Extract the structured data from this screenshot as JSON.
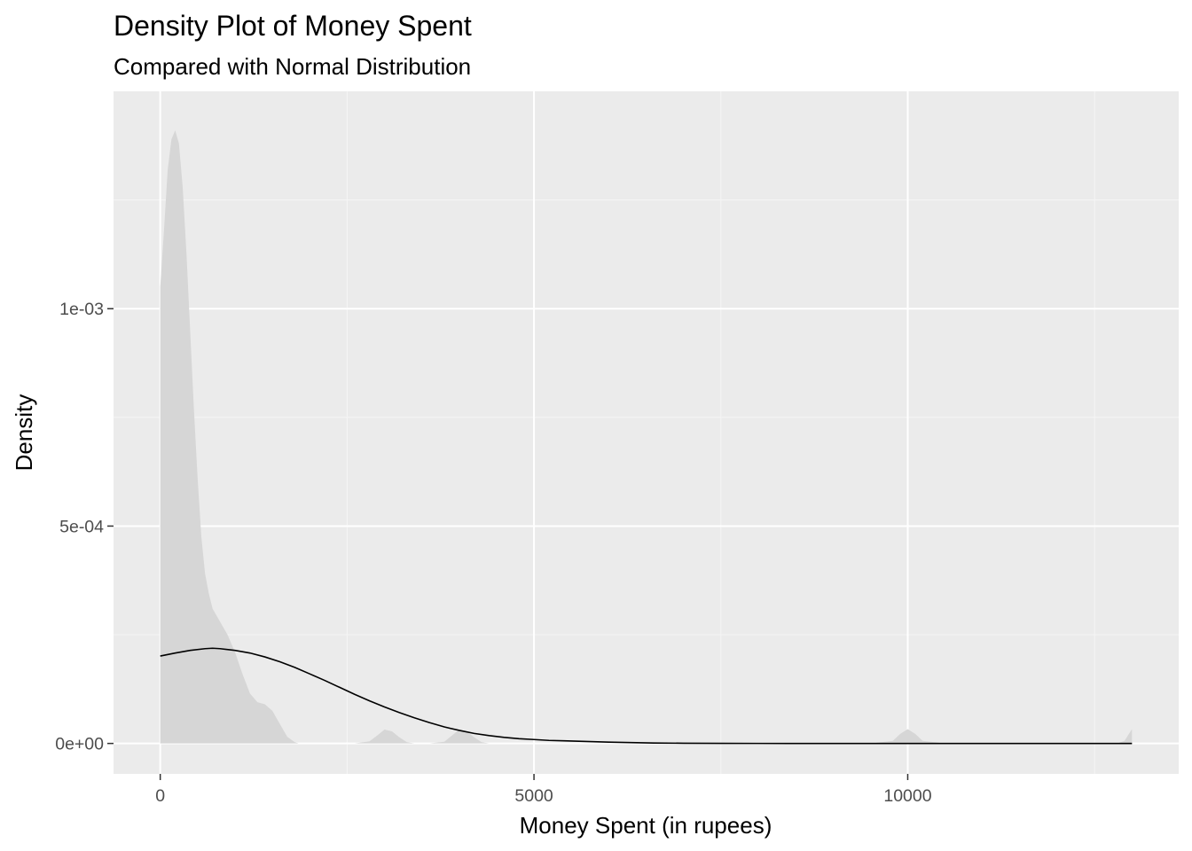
{
  "colors": {
    "panel_background": "#ebebeb",
    "grid_major": "#ffffff",
    "grid_minor": "#f5f5f5",
    "density_fill": "#d6d6d6",
    "normal_line": "#000000",
    "tick_text": "#4d4d4d",
    "tick_mark": "#333333"
  },
  "chart_data": {
    "type": "area",
    "title": "Density Plot of Money Spent",
    "subtitle": "Compared with Normal Distribution",
    "xlabel": "Money Spent (in rupees)",
    "ylabel": "Density",
    "xlim": [
      -625,
      13625
    ],
    "ylim": [
      -7e-05,
      0.0015
    ],
    "x_ticks": [
      {
        "value": 0,
        "label": "0"
      },
      {
        "value": 5000,
        "label": "5000"
      },
      {
        "value": 10000,
        "label": "10000"
      }
    ],
    "y_ticks": [
      {
        "value": 0,
        "label": "0e+00"
      },
      {
        "value": 0.0005,
        "label": "5e-04"
      },
      {
        "value": 0.001,
        "label": "1e-03"
      }
    ],
    "grid": true,
    "legend": "none",
    "series": [
      {
        "geom": "area",
        "x": [
          0,
          50,
          100,
          150,
          200,
          250,
          300,
          350,
          400,
          450,
          500,
          550,
          600,
          650,
          700,
          800,
          900,
          1000,
          1100,
          1200,
          1300,
          1400,
          1500,
          1600,
          1700,
          1800,
          1850,
          2000,
          2200,
          2400,
          2600,
          2800,
          2900,
          3000,
          3100,
          3200,
          3300,
          3400,
          3600,
          3800,
          3900,
          4000,
          4100,
          4200,
          4300,
          4400,
          4600,
          5000,
          6000,
          7000,
          8000,
          9000,
          9500,
          9800,
          9900,
          10000,
          10100,
          10200,
          10500,
          11000,
          12000,
          12500,
          12800,
          12900,
          13000
        ],
        "y": [
          0.00105,
          0.00118,
          0.00132,
          0.00139,
          0.00141,
          0.00138,
          0.00128,
          0.00113,
          0.00095,
          0.00077,
          0.00061,
          0.000475,
          0.00039,
          0.000345,
          0.00031,
          0.00028,
          0.00025,
          0.00021,
          0.00016,
          0.000115,
          9.5e-05,
          9e-05,
          7.5e-05,
          4.5e-05,
          1.5e-05,
          3e-06,
          0,
          0,
          0,
          0,
          0,
          5e-06,
          1.8e-05,
          3.2e-05,
          2.8e-05,
          1.4e-05,
          3e-06,
          0,
          0,
          4e-06,
          1.8e-05,
          3.2e-05,
          2.8e-05,
          1.4e-05,
          3e-06,
          0,
          0,
          0,
          0,
          0,
          0,
          0,
          0,
          6e-06,
          2.2e-05,
          3.3e-05,
          2.2e-05,
          6e-06,
          0,
          0,
          0,
          0,
          0,
          6e-06,
          3.3e-05
        ]
      },
      {
        "geom": "line",
        "x": [
          0,
          200,
          400,
          600,
          700,
          800,
          1000,
          1200,
          1400,
          1600,
          1800,
          2000,
          2200,
          2400,
          2600,
          2800,
          3000,
          3200,
          3400,
          3600,
          3800,
          4000,
          4200,
          4400,
          4600,
          4800,
          5000,
          5200,
          5400,
          5600,
          5800,
          6000,
          6300,
          6600,
          7000,
          7500,
          8000,
          9000,
          10000,
          11000,
          12000,
          13000
        ],
        "y": [
          0.000201,
          0.000208,
          0.000214,
          0.000218,
          0.000219,
          0.000218,
          0.000214,
          0.000208,
          0.000199,
          0.000188,
          0.000175,
          0.00016,
          0.000145,
          0.000129,
          0.000113,
          9.8e-05,
          8.4e-05,
          7.1e-05,
          5.9e-05,
          4.8e-05,
          3.8e-05,
          3e-05,
          2.3e-05,
          1.8e-05,
          1.4e-05,
          1.1e-05,
          9e-06,
          7e-06,
          6e-06,
          5e-06,
          4e-06,
          3e-06,
          2e-06,
          1e-06,
          5e-07,
          2e-07,
          1e-07,
          0,
          0,
          0,
          0,
          0
        ]
      }
    ]
  }
}
